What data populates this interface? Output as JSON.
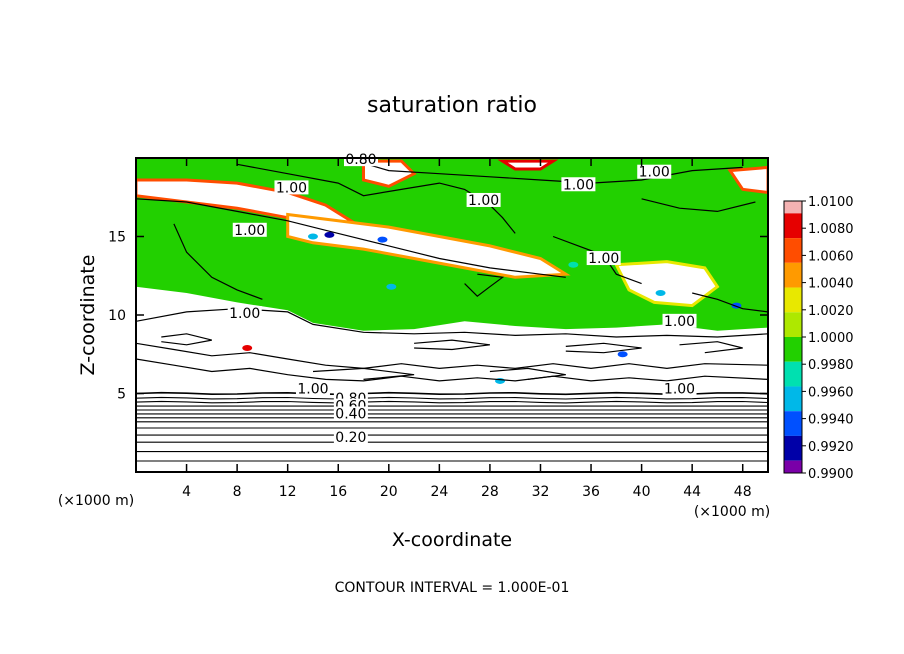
{
  "chart_data": {
    "type": "heatmap",
    "title": "saturation ratio",
    "xlabel": "X-coordinate",
    "ylabel": "Z-coordinate",
    "x_unit": "(×1000 m)",
    "z_unit": "(×1000 m)",
    "xlim": [
      0,
      50
    ],
    "ylim": [
      0,
      20
    ],
    "x_ticks": [
      4,
      8,
      12,
      16,
      20,
      24,
      28,
      32,
      36,
      40,
      44,
      48
    ],
    "y_ticks": [
      5,
      10,
      15
    ],
    "contour_interval_text": "CONTOUR INTERVAL = 1.000E-01",
    "contour_labels": [
      {
        "text": "0.80",
        "x": 17.8,
        "z": 19.8
      },
      {
        "text": "1.00",
        "x": 12.3,
        "z": 18.0
      },
      {
        "text": "1.00",
        "x": 27.5,
        "z": 17.2
      },
      {
        "text": "1.00",
        "x": 35.0,
        "z": 18.2
      },
      {
        "text": "1.00",
        "x": 41.0,
        "z": 19.0
      },
      {
        "text": "1.00",
        "x": 9.0,
        "z": 15.3
      },
      {
        "text": "1.00",
        "x": 37.0,
        "z": 13.5
      },
      {
        "text": "1.00",
        "x": 8.6,
        "z": 10.0
      },
      {
        "text": "1.00",
        "x": 43.0,
        "z": 9.5
      },
      {
        "text": "1.00",
        "x": 14.0,
        "z": 5.2
      },
      {
        "text": "1.00",
        "x": 43.0,
        "z": 5.2
      },
      {
        "text": "0.80",
        "x": 17.0,
        "z": 4.6
      },
      {
        "text": "0.60",
        "x": 17.0,
        "z": 4.1
      },
      {
        "text": "0.40",
        "x": 17.0,
        "z": 3.6
      },
      {
        "text": "0.20",
        "x": 17.0,
        "z": 2.1
      }
    ],
    "colorbar": {
      "levels": [
        "1.0100",
        "1.0080",
        "1.0060",
        "1.0040",
        "1.0020",
        "1.0000",
        "0.9980",
        "0.9960",
        "0.9940",
        "0.9920",
        "0.9900"
      ],
      "colors": [
        "#f4b2b2",
        "#e60000",
        "#ff4d00",
        "#ff9a00",
        "#e8e800",
        "#aee800",
        "#22d000",
        "#00e0b0",
        "#00b8e8",
        "#0050ff",
        "#0000a8",
        "#7a00a8"
      ]
    },
    "dominant_field_color": "#22d000",
    "undefined_region_color": "#ffffff"
  }
}
